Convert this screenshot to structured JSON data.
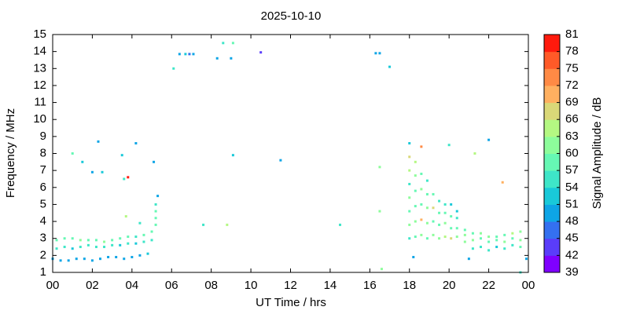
{
  "chart_data": {
    "type": "scatter",
    "title": "2025-10-10",
    "x_label": "UT Time / hrs",
    "y_label": "Frequency / MHz",
    "xlim": [
      0,
      24
    ],
    "xticks": [
      {
        "value": 0,
        "label": "00"
      },
      {
        "value": 2,
        "label": "02"
      },
      {
        "value": 4,
        "label": "04"
      },
      {
        "value": 6,
        "label": "06"
      },
      {
        "value": 8,
        "label": "08"
      },
      10,
      12,
      14,
      16,
      18,
      20,
      22,
      {
        "value": 24,
        "label": "00"
      }
    ],
    "ylim": [
      1,
      15
    ],
    "yticks": [
      1,
      2,
      3,
      4,
      5,
      6,
      7,
      8,
      9,
      10,
      11,
      12,
      13,
      14,
      15
    ],
    "colorbar": {
      "label": "Signal Amplitude / dB",
      "lim": [
        39,
        81
      ],
      "ticks": [
        39,
        42,
        45,
        48,
        51,
        54,
        57,
        60,
        63,
        66,
        69,
        72,
        75,
        78,
        81
      ],
      "colors": [
        "#7f00ff",
        "#5a3dfa",
        "#3470f0",
        "#0ea5e6",
        "#19c9d9",
        "#3ee6c8",
        "#66f8b4",
        "#8dfd9b",
        "#b4f882",
        "#dad878",
        "#ffb060",
        "#ff8a45",
        "#ff5a28",
        "#ff1a0d"
      ]
    },
    "x": [
      1.0,
      1.5,
      2.3,
      2.0,
      2.5,
      3.5,
      4.2,
      3.6,
      3.8,
      5.1,
      6.1,
      6.4,
      6.7,
      6.9,
      7.1,
      8.3,
      8.6,
      9.0,
      9.1,
      10.5,
      9.1,
      11.5,
      7.6,
      8.8,
      14.5,
      16.3,
      16.5,
      17.0,
      16.5,
      16.5,
      16.6,
      20.0,
      21.3,
      22.0,
      22.7,
      3.7,
      4.4,
      23.6,
      0.0,
      0.4,
      0.8,
      1.2,
      1.6,
      2.0,
      2.4,
      2.8,
      3.2,
      3.6,
      4.0,
      4.4,
      4.8,
      0.2,
      0.6,
      1.0,
      1.4,
      1.8,
      2.2,
      2.6,
      3.0,
      3.4,
      3.8,
      4.2,
      4.6,
      5.0,
      0.2,
      0.6,
      1.0,
      1.4,
      1.8,
      2.2,
      2.6,
      3.0,
      3.4,
      3.8,
      4.2,
      4.6,
      5.0,
      5.2,
      5.2,
      5.2,
      5.2,
      5.3,
      18.0,
      18.0,
      18.0,
      18.0,
      18.0,
      18.0,
      18.0,
      18.0,
      18.3,
      18.3,
      18.3,
      18.3,
      18.3,
      18.3,
      18.6,
      18.6,
      18.6,
      18.6,
      18.6,
      18.6,
      18.9,
      18.9,
      18.9,
      18.9,
      18.9,
      19.2,
      19.2,
      19.2,
      19.2,
      19.5,
      19.5,
      19.5,
      19.5,
      19.8,
      19.8,
      19.8,
      19.8,
      20.1,
      20.1,
      20.1,
      20.1,
      20.4,
      20.4,
      20.4,
      20.4,
      20.8,
      20.8,
      20.8,
      21.2,
      21.2,
      21.2,
      21.6,
      21.6,
      21.6,
      22.0,
      22.0,
      22.0,
      22.4,
      22.4,
      22.4,
      22.8,
      22.8,
      22.8,
      23.2,
      23.2,
      23.2,
      23.6,
      23.6,
      23.6,
      18.2,
      21.0,
      23.9
    ],
    "values": [
      8.0,
      7.5,
      8.7,
      6.9,
      6.9,
      7.9,
      8.6,
      6.5,
      6.6,
      7.5,
      13.0,
      13.85,
      13.85,
      13.85,
      13.85,
      13.6,
      14.5,
      13.6,
      14.5,
      13.95,
      7.9,
      7.6,
      3.8,
      3.8,
      3.8,
      13.9,
      13.9,
      13.1,
      7.2,
      4.6,
      1.2,
      8.5,
      8.0,
      8.8,
      6.3,
      4.3,
      3.9,
      1.0,
      1.8,
      1.7,
      1.7,
      1.8,
      1.8,
      1.7,
      1.8,
      1.9,
      1.9,
      1.8,
      1.9,
      2.0,
      2.1,
      2.9,
      3.0,
      3.0,
      2.9,
      2.9,
      2.9,
      2.8,
      2.9,
      3.0,
      3.1,
      3.1,
      3.2,
      3.4,
      2.4,
      2.5,
      2.4,
      2.5,
      2.6,
      2.5,
      2.5,
      2.6,
      2.6,
      2.7,
      2.7,
      2.8,
      2.9,
      3.8,
      4.2,
      4.6,
      5.0,
      5.5,
      3.0,
      3.8,
      4.6,
      5.4,
      6.2,
      7.0,
      7.8,
      8.6,
      3.1,
      4.0,
      4.9,
      5.8,
      6.7,
      7.5,
      3.2,
      4.1,
      5.0,
      5.9,
      6.8,
      8.4,
      3.0,
      3.9,
      4.8,
      5.6,
      6.4,
      3.2,
      4.0,
      4.8,
      5.6,
      3.0,
      3.8,
      4.5,
      5.2,
      3.1,
      3.9,
      4.5,
      5.0,
      3.0,
      3.6,
      4.3,
      5.0,
      3.1,
      3.6,
      4.2,
      4.6,
      2.8,
      3.2,
      3.5,
      2.4,
      2.9,
      3.3,
      2.5,
      3.0,
      3.3,
      2.3,
      2.8,
      3.1,
      2.5,
      2.9,
      3.1,
      2.4,
      2.8,
      3.2,
      2.6,
      3.0,
      3.3,
      2.5,
      2.9,
      3.4,
      1.9,
      1.8,
      1.8
    ],
    "z": [
      58,
      52,
      50,
      50,
      52,
      52,
      50,
      56,
      78,
      50,
      55,
      50,
      51,
      45,
      48,
      48,
      55,
      48,
      58,
      42,
      51,
      50,
      56,
      64,
      55,
      48,
      50,
      52,
      62,
      60,
      60,
      55,
      64,
      50,
      70,
      64,
      55,
      55,
      48,
      50,
      48,
      48,
      50,
      48,
      50,
      48,
      48,
      50,
      48,
      50,
      51,
      58,
      57,
      59,
      60,
      58,
      57,
      60,
      58,
      59,
      57,
      55,
      57,
      58,
      55,
      54,
      53,
      55,
      54,
      56,
      55,
      54,
      53,
      55,
      52,
      54,
      55,
      58,
      57,
      59,
      56,
      50,
      56,
      62,
      58,
      60,
      55,
      64,
      66,
      52,
      58,
      60,
      57,
      59,
      62,
      64,
      60,
      70,
      58,
      62,
      57,
      72,
      57,
      62,
      60,
      58,
      56,
      60,
      58,
      66,
      57,
      62,
      59,
      57,
      55,
      64,
      60,
      58,
      55,
      66,
      59,
      57,
      52,
      62,
      57,
      55,
      52,
      60,
      62,
      58,
      55,
      60,
      57,
      54,
      58,
      60,
      55,
      58,
      62,
      53,
      57,
      59,
      55,
      60,
      58,
      54,
      57,
      64,
      57,
      60,
      62,
      48,
      48,
      48
    ]
  }
}
